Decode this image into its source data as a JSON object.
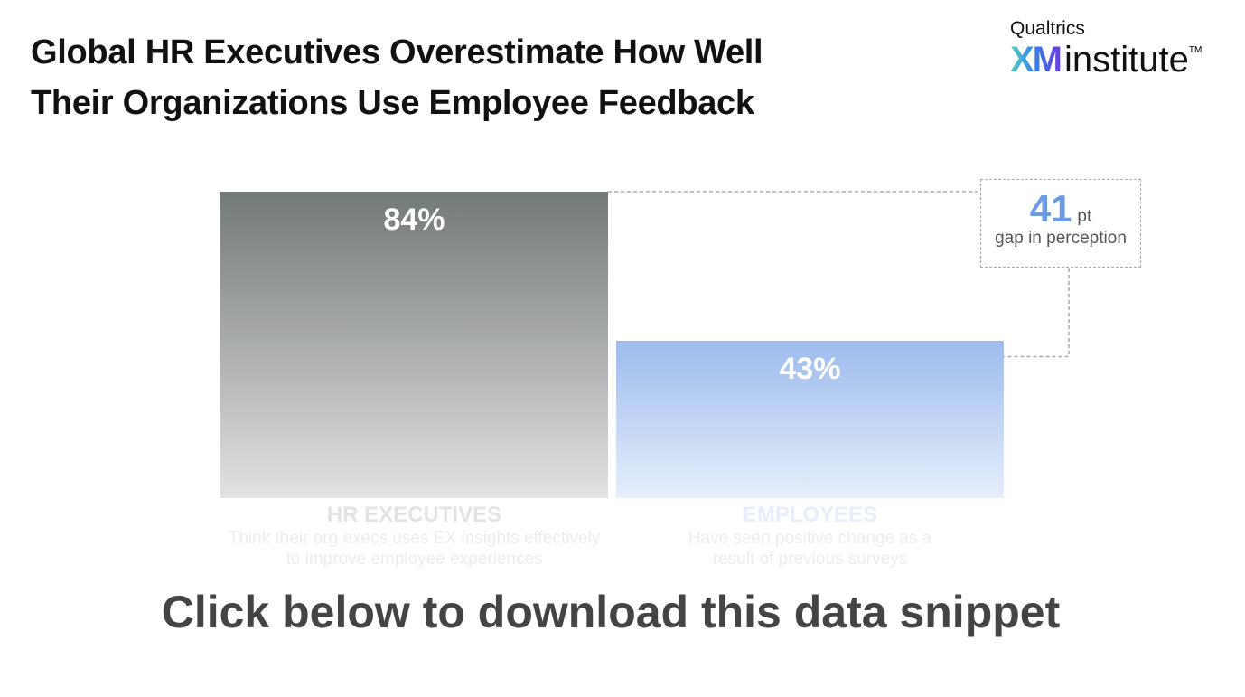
{
  "title_lines": [
    "Global HR Executives Overestimate How Well",
    "Their Organizations Use Employee Feedback"
  ],
  "logo": {
    "brand": "Qualtrics",
    "xm": "XM",
    "institute": "institute",
    "tm": "TM"
  },
  "chart_data": {
    "type": "bar",
    "title": "Global HR Executives Overestimate How Well Their Organizations Use Employee Feedback",
    "categories": [
      "HR EXECUTIVES",
      "EMPLOYEES"
    ],
    "descriptions": [
      "Think their org execs uses EX insights effectively to improve employee experiences",
      "Have seen positive change as a result of previous surveys"
    ],
    "values": [
      84,
      43
    ],
    "labels": [
      "84%",
      "43%"
    ],
    "colors": [
      "#737879",
      "#9dbbed"
    ],
    "ylim": [
      0,
      100
    ],
    "annotation": {
      "value": "41",
      "unit": "pt",
      "label": "gap in perception",
      "color": "#6a9ae6"
    }
  },
  "cta": "Click below to download this data snippet"
}
